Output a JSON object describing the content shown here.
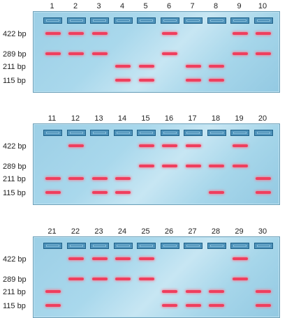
{
  "size_labels": [
    "422 bp",
    "289 bp",
    "211 bp",
    "115 bp"
  ],
  "gels": [
    {
      "lanes": [
        {
          "number": "1",
          "bands": [
            "422 bp",
            "289 bp"
          ]
        },
        {
          "number": "2",
          "bands": [
            "422 bp",
            "289 bp"
          ]
        },
        {
          "number": "3",
          "bands": [
            "422 bp",
            "289 bp"
          ]
        },
        {
          "number": "4",
          "bands": [
            "211 bp",
            "115 bp"
          ]
        },
        {
          "number": "5",
          "bands": [
            "211 bp",
            "115 bp"
          ]
        },
        {
          "number": "6",
          "bands": [
            "422 bp",
            "289 bp"
          ]
        },
        {
          "number": "7",
          "bands": [
            "211 bp",
            "115 bp"
          ]
        },
        {
          "number": "8",
          "bands": [
            "211 bp",
            "115 bp"
          ]
        },
        {
          "number": "9",
          "bands": [
            "422 bp",
            "289 bp"
          ]
        },
        {
          "number": "10",
          "bands": [
            "422 bp",
            "289 bp"
          ]
        }
      ]
    },
    {
      "lanes": [
        {
          "number": "11",
          "bands": [
            "211 bp",
            "115 bp"
          ]
        },
        {
          "number": "12",
          "bands": [
            "422 bp",
            "211 bp"
          ]
        },
        {
          "number": "13",
          "bands": [
            "211 bp",
            "115 bp"
          ]
        },
        {
          "number": "14",
          "bands": [
            "211 bp",
            "115 bp"
          ]
        },
        {
          "number": "15",
          "bands": [
            "422 bp",
            "289 bp"
          ]
        },
        {
          "number": "16",
          "bands": [
            "422 bp",
            "289 bp"
          ]
        },
        {
          "number": "17",
          "bands": [
            "422 bp",
            "289 bp"
          ]
        },
        {
          "number": "18",
          "bands": [
            "289 bp",
            "115 bp"
          ]
        },
        {
          "number": "19",
          "bands": [
            "422 bp",
            "289 bp"
          ]
        },
        {
          "number": "20",
          "bands": [
            "211 bp",
            "115 bp"
          ]
        }
      ]
    },
    {
      "lanes": [
        {
          "number": "21",
          "bands": [
            "211 bp",
            "115 bp"
          ]
        },
        {
          "number": "22",
          "bands": [
            "422 bp",
            "289 bp"
          ]
        },
        {
          "number": "23",
          "bands": [
            "422 bp",
            "289 bp"
          ]
        },
        {
          "number": "24",
          "bands": [
            "422 bp",
            "289 bp"
          ]
        },
        {
          "number": "25",
          "bands": [
            "422 bp",
            "289 bp"
          ]
        },
        {
          "number": "26",
          "bands": [
            "211 bp",
            "115 bp"
          ]
        },
        {
          "number": "27",
          "bands": [
            "211 bp",
            "115 bp"
          ]
        },
        {
          "number": "28",
          "bands": [
            "211 bp",
            "115 bp"
          ]
        },
        {
          "number": "29",
          "bands": [
            "422 bp",
            "289 bp"
          ]
        },
        {
          "number": "30",
          "bands": [
            "211 bp",
            "115 bp"
          ]
        }
      ]
    }
  ],
  "colors": {
    "band": "#ef3f5e",
    "gel": "#a9d8ec",
    "well": "#2e78a6"
  }
}
